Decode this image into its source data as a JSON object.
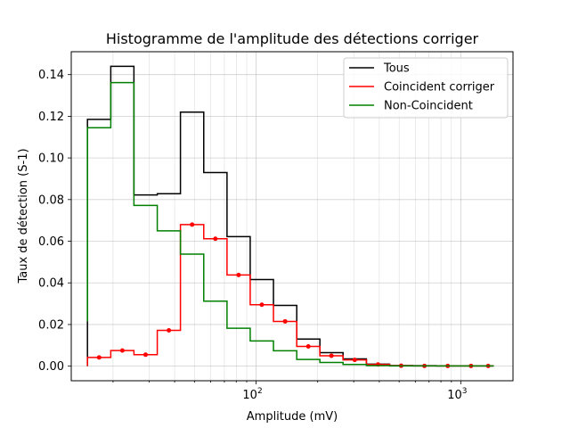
{
  "chart_data": {
    "type": "line",
    "title": "Histogramme de l'amplitude des détections corriger",
    "xlabel": "Amplitude (mV)",
    "ylabel": "Taux de détection (S-1)",
    "x_scale": "log",
    "xlim": [
      12.5,
      1800
    ],
    "ylim": [
      -0.007,
      0.151
    ],
    "grid": true,
    "legend_position": "top-right",
    "x_ticks": [
      {
        "value": 100,
        "base": "10",
        "exp": "2"
      },
      {
        "value": 1000,
        "base": "10",
        "exp": "3"
      }
    ],
    "y_ticks": [
      "0.00",
      "0.02",
      "0.04",
      "0.06",
      "0.08",
      "0.10",
      "0.12",
      "0.14"
    ],
    "bin_edges": [
      15,
      19.5,
      25.3,
      32.9,
      42.7,
      55.5,
      72.1,
      93.6,
      121.6,
      158,
      205,
      266,
      346,
      449,
      583,
      758,
      985,
      1279,
      1450
    ],
    "series": [
      {
        "name": "Tous",
        "color": "#000000",
        "values": [
          0.1185,
          0.144,
          0.0822,
          0.0828,
          0.122,
          0.093,
          0.0622,
          0.0416,
          0.0292,
          0.013,
          0.0065,
          0.0035,
          0.001,
          0.0003,
          0.0002,
          0.0001,
          0.0001,
          0.0001
        ],
        "markers": false
      },
      {
        "name": "Coincident corriger",
        "color": "#ff0000",
        "values": [
          0.0042,
          0.0075,
          0.0055,
          0.0172,
          0.068,
          0.0612,
          0.0438,
          0.0295,
          0.0215,
          0.0095,
          0.005,
          0.003,
          0.0008,
          0.0002,
          0.0001,
          0.0001,
          0.0001,
          0.0001
        ],
        "markers": true
      },
      {
        "name": "Non-Coincident",
        "color": "#008000",
        "values": [
          0.1145,
          0.1362,
          0.0772,
          0.065,
          0.0538,
          0.0312,
          0.0182,
          0.0121,
          0.0074,
          0.0032,
          0.0018,
          0.0008,
          0.0003,
          0.0001,
          0.0001,
          0.0001,
          0.0001,
          0.0001
        ],
        "markers": false,
        "start_value": 0.0215
      }
    ]
  }
}
